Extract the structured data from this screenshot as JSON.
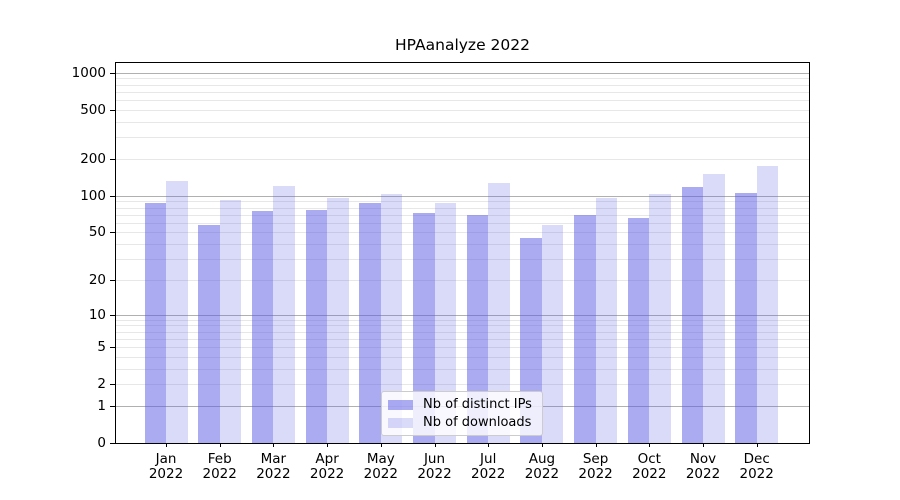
{
  "chart_data": {
    "type": "bar",
    "title": "HPAanalyze 2022",
    "categories": [
      "Jan",
      "Feb",
      "Mar",
      "Apr",
      "May",
      "Jun",
      "Jul",
      "Aug",
      "Sep",
      "Oct",
      "Nov",
      "Dec"
    ],
    "category_year": "2022",
    "series": [
      {
        "name": "Nb of distinct IPs",
        "color": "rgba(87,87,229,0.50)",
        "values": [
          87,
          57,
          75,
          76,
          87,
          72,
          69,
          45,
          70,
          66,
          118,
          105
        ]
      },
      {
        "name": "Nb of downloads",
        "color": "rgba(87,87,229,0.22)",
        "values": [
          133,
          92,
          119,
          96,
          104,
          88,
          126,
          57,
          96,
          103,
          150,
          175
        ]
      }
    ],
    "yscale": "log1p",
    "ylim": [
      0,
      1200
    ],
    "y_ticks": [
      0,
      1,
      2,
      5,
      10,
      20,
      50,
      100,
      200,
      500,
      1000
    ],
    "grid": true,
    "legend_position": "lower center",
    "colors": {
      "grid_major": "#b0b0b0",
      "grid_minor": "#e7e7e7",
      "axis": "#000000",
      "background": "#ffffff"
    }
  }
}
